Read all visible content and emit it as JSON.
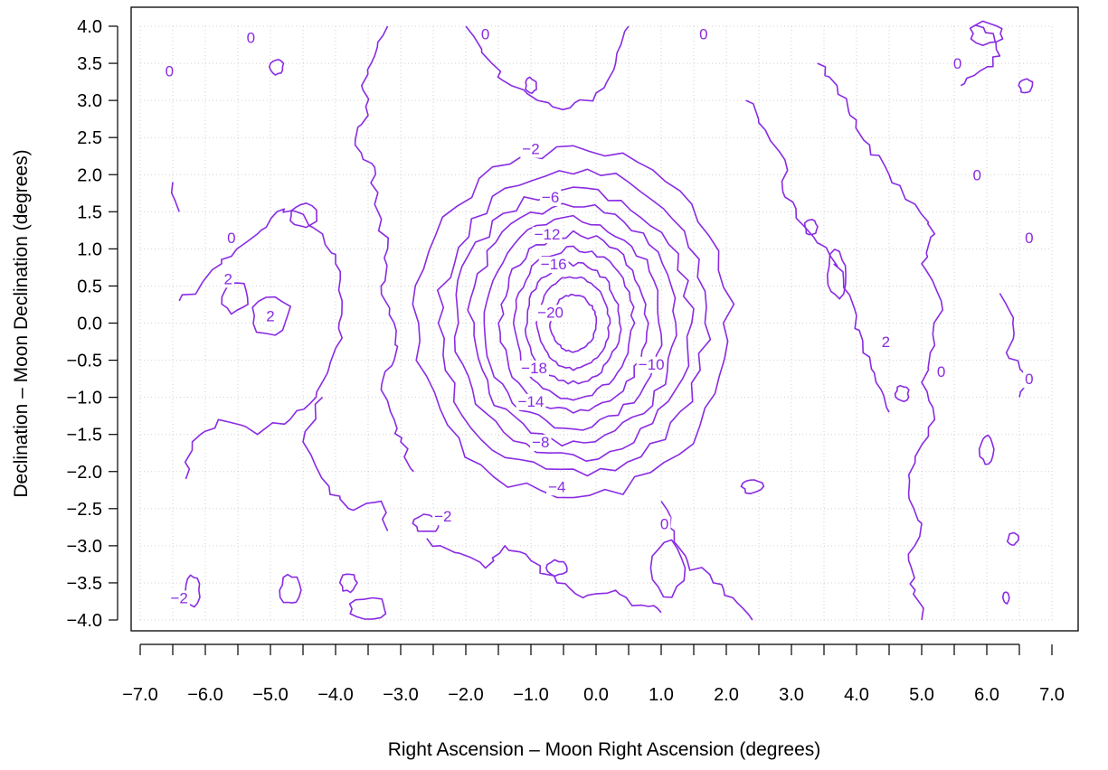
{
  "chart_data": {
    "type": "contour",
    "title": "",
    "xlabel": "Right Ascension – Moon Right Ascension (degrees)",
    "ylabel": "Declination – Moon Declination (degrees)",
    "xlim": [
      -7.0,
      7.0
    ],
    "ylim": [
      -4.0,
      4.0
    ],
    "x_ticks": [
      "−7.0",
      "−6.0",
      "−5.0",
      "−4.0",
      "−3.0",
      "−2.0",
      "−1.0",
      "0.0",
      "1.0",
      "2.0",
      "3.0",
      "4.0",
      "5.0",
      "6.0",
      "7.0"
    ],
    "y_ticks": [
      "4.0",
      "3.5",
      "3.0",
      "2.5",
      "2.0",
      "1.5",
      "1.0",
      "0.5",
      "0.0",
      "−0.5",
      "−1.0",
      "−1.5",
      "−2.0",
      "−2.5",
      "−3.0",
      "−3.5",
      "−4.0"
    ],
    "minor_x_step": 0.5,
    "grid": "dotted",
    "line_color": "#8a2be2",
    "center": [
      -0.35,
      0.0
    ],
    "rings": [
      {
        "level": -2,
        "rx": 2.4,
        "ry": 2.35
      },
      {
        "level": -4,
        "rx": 2.05,
        "ry": 2.05
      },
      {
        "level": -6,
        "rx": 1.8,
        "ry": 1.8
      },
      {
        "level": -8,
        "rx": 1.58,
        "ry": 1.6
      },
      {
        "level": -10,
        "rx": 1.35,
        "ry": 1.4
      },
      {
        "level": -12,
        "rx": 1.12,
        "ry": 1.2
      },
      {
        "level": -14,
        "rx": 0.92,
        "ry": 1.0
      },
      {
        "level": -16,
        "rx": 0.72,
        "ry": 0.8
      },
      {
        "level": -18,
        "rx": 0.55,
        "ry": 0.62
      },
      {
        "level": -20,
        "rx": 0.35,
        "ry": 0.38
      }
    ],
    "contour_labels": [
      {
        "text": "−2",
        "x": -1.0,
        "y": 2.3
      },
      {
        "text": "−6",
        "x": -0.7,
        "y": 1.65
      },
      {
        "text": "−12",
        "x": -0.75,
        "y": 1.15
      },
      {
        "text": "−16",
        "x": -0.65,
        "y": 0.75
      },
      {
        "text": "−20",
        "x": -0.7,
        "y": 0.1
      },
      {
        "text": "−18",
        "x": -0.95,
        "y": -0.65
      },
      {
        "text": "−10",
        "x": 0.85,
        "y": -0.6
      },
      {
        "text": "−14",
        "x": -1.0,
        "y": -1.1
      },
      {
        "text": "−8",
        "x": -0.85,
        "y": -1.65
      },
      {
        "text": "−4",
        "x": -0.6,
        "y": -2.25
      },
      {
        "text": "−2",
        "x": -2.35,
        "y": -2.65
      },
      {
        "text": "0",
        "x": -5.3,
        "y": 3.8
      },
      {
        "text": "0",
        "x": -6.55,
        "y": 3.35
      },
      {
        "text": "0",
        "x": -5.6,
        "y": 1.1
      },
      {
        "text": "2",
        "x": -5.65,
        "y": 0.55
      },
      {
        "text": "2",
        "x": -5.0,
        "y": 0.05
      },
      {
        "text": "0",
        "x": -1.7,
        "y": 3.85
      },
      {
        "text": "0",
        "x": 1.65,
        "y": 3.85
      },
      {
        "text": "0",
        "x": 5.55,
        "y": 3.45
      },
      {
        "text": "0",
        "x": 5.85,
        "y": 1.95
      },
      {
        "text": "0",
        "x": 6.65,
        "y": 1.1
      },
      {
        "text": "2",
        "x": 4.45,
        "y": -0.3
      },
      {
        "text": "0",
        "x": 5.3,
        "y": -0.7
      },
      {
        "text": "0",
        "x": 6.65,
        "y": -0.8
      },
      {
        "text": "0",
        "x": 1.05,
        "y": -2.75
      },
      {
        "text": "−2",
        "x": -6.4,
        "y": -3.75
      }
    ],
    "open_contours": [
      {
        "level": 0,
        "points": [
          [
            -3.2,
            4.0
          ],
          [
            -3.4,
            3.6
          ],
          [
            -3.6,
            3.2
          ],
          [
            -3.5,
            2.8
          ],
          [
            -3.7,
            2.4
          ],
          [
            -3.4,
            2.1
          ],
          [
            -3.4,
            1.6
          ],
          [
            -3.2,
            1.0
          ],
          [
            -3.3,
            0.5
          ],
          [
            -3.1,
            0.0
          ],
          [
            -3.1,
            -0.5
          ],
          [
            -3.3,
            -0.9
          ],
          [
            -3.1,
            -1.3
          ],
          [
            -3.0,
            -1.6
          ],
          [
            -2.8,
            -2.0
          ]
        ]
      },
      {
        "level": 0,
        "points": [
          [
            -4.6,
            1.5
          ],
          [
            -4.2,
            1.2
          ],
          [
            -4.0,
            0.8
          ],
          [
            -3.9,
            0.3
          ],
          [
            -3.9,
            -0.2
          ],
          [
            -4.1,
            -0.6
          ],
          [
            -4.3,
            -1.0
          ],
          [
            -4.7,
            -1.3
          ],
          [
            -5.2,
            -1.5
          ],
          [
            -5.8,
            -1.3
          ],
          [
            -6.2,
            -1.6
          ],
          [
            -6.3,
            -2.1
          ]
        ]
      },
      {
        "level": 0,
        "points": [
          [
            -6.4,
            0.3
          ],
          [
            -6.0,
            0.6
          ],
          [
            -5.6,
            0.9
          ],
          [
            -5.2,
            1.2
          ],
          [
            -4.9,
            1.5
          ],
          [
            -4.6,
            1.5
          ]
        ]
      },
      {
        "level": 0,
        "points": [
          [
            -6.5,
            1.9
          ],
          [
            -6.4,
            1.5
          ]
        ]
      },
      {
        "level": 0,
        "points": [
          [
            -4.2,
            -1.0
          ],
          [
            -4.5,
            -1.6
          ],
          [
            -4.1,
            -2.2
          ],
          [
            -3.8,
            -2.5
          ],
          [
            -3.3,
            -2.4
          ],
          [
            -3.2,
            -2.8
          ]
        ]
      },
      {
        "level": 0,
        "points": [
          [
            -2.6,
            -2.9
          ],
          [
            -2.1,
            -3.1
          ],
          [
            -1.7,
            -3.3
          ],
          [
            -1.4,
            -3.0
          ],
          [
            -1.0,
            -3.2
          ],
          [
            -0.6,
            -3.5
          ],
          [
            -0.2,
            -3.7
          ],
          [
            0.3,
            -3.6
          ],
          [
            0.7,
            -3.8
          ],
          [
            1.0,
            -3.9
          ]
        ]
      },
      {
        "level": 0,
        "points": [
          [
            1.0,
            -2.4
          ],
          [
            1.2,
            -2.8
          ],
          [
            1.4,
            -3.2
          ],
          [
            1.8,
            -3.5
          ],
          [
            2.1,
            -3.7
          ],
          [
            2.4,
            -4.0
          ]
        ]
      },
      {
        "level": 0,
        "points": [
          [
            -2.0,
            4.0
          ],
          [
            -1.6,
            3.5
          ],
          [
            -1.3,
            3.2
          ],
          [
            -0.9,
            3.0
          ],
          [
            -0.4,
            2.9
          ],
          [
            0.0,
            3.1
          ],
          [
            0.3,
            3.5
          ],
          [
            0.5,
            4.0
          ]
        ]
      },
      {
        "level": 0,
        "points": [
          [
            2.3,
            3.0
          ],
          [
            2.6,
            2.6
          ],
          [
            2.9,
            2.2
          ],
          [
            2.9,
            1.7
          ],
          [
            3.2,
            1.3
          ],
          [
            3.6,
            0.9
          ],
          [
            3.8,
            0.6
          ],
          [
            4.0,
            0.1
          ],
          [
            4.1,
            -0.4
          ],
          [
            4.3,
            -0.8
          ],
          [
            4.5,
            -1.2
          ]
        ]
      },
      {
        "level": 0,
        "points": [
          [
            3.4,
            3.5
          ],
          [
            3.7,
            3.2
          ],
          [
            3.9,
            2.8
          ],
          [
            4.2,
            2.4
          ],
          [
            4.5,
            2.0
          ],
          [
            4.9,
            1.6
          ],
          [
            5.2,
            1.2
          ],
          [
            5.0,
            0.8
          ],
          [
            5.3,
            0.3
          ],
          [
            5.2,
            -0.3
          ],
          [
            5.0,
            -0.8
          ],
          [
            5.2,
            -1.3
          ],
          [
            4.9,
            -1.8
          ],
          [
            4.8,
            -2.3
          ],
          [
            5.0,
            -2.7
          ],
          [
            4.8,
            -3.2
          ],
          [
            4.9,
            -3.6
          ],
          [
            5.0,
            -4.0
          ]
        ]
      },
      {
        "level": 0,
        "points": [
          [
            6.2,
            0.4
          ],
          [
            6.4,
            0.0
          ],
          [
            6.3,
            -0.4
          ],
          [
            6.6,
            -0.7
          ],
          [
            6.5,
            -1.0
          ]
        ]
      },
      {
        "level": 0,
        "points": [
          [
            5.6,
            3.2
          ],
          [
            5.9,
            3.4
          ],
          [
            6.2,
            3.6
          ],
          [
            6.1,
            3.9
          ],
          [
            5.8,
            4.0
          ]
        ]
      }
    ],
    "closed_blobs": [
      {
        "level": 0,
        "cx": -5.0,
        "cy": 0.1,
        "rx": 0.3,
        "ry": 0.25
      },
      {
        "level": 2,
        "cx": -5.55,
        "cy": 0.35,
        "rx": 0.2,
        "ry": 0.2
      },
      {
        "level": 0,
        "cx": -4.5,
        "cy": 1.45,
        "rx": 0.2,
        "ry": 0.15
      },
      {
        "level": 0,
        "cx": -4.9,
        "cy": 3.45,
        "rx": 0.1,
        "ry": 0.1
      },
      {
        "level": 0,
        "cx": -4.7,
        "cy": -3.6,
        "rx": 0.15,
        "ry": 0.2
      },
      {
        "level": 0,
        "cx": -3.5,
        "cy": -3.85,
        "rx": 0.3,
        "ry": 0.15
      },
      {
        "level": 0,
        "cx": -3.8,
        "cy": -3.5,
        "rx": 0.12,
        "ry": 0.12
      },
      {
        "level": 0,
        "cx": -0.6,
        "cy": -3.3,
        "rx": 0.15,
        "ry": 0.1
      },
      {
        "level": 0,
        "cx": 1.1,
        "cy": -3.3,
        "rx": 0.25,
        "ry": 0.35
      },
      {
        "level": 0,
        "cx": 2.4,
        "cy": -2.2,
        "rx": 0.15,
        "ry": 0.1
      },
      {
        "level": 0,
        "cx": 3.3,
        "cy": 1.3,
        "rx": 0.1,
        "ry": 0.1
      },
      {
        "level": 0,
        "cx": 3.7,
        "cy": 0.65,
        "rx": 0.15,
        "ry": 0.3
      },
      {
        "level": 0,
        "cx": 6.0,
        "cy": 3.9,
        "rx": 0.25,
        "ry": 0.15
      },
      {
        "level": 0,
        "cx": 6.6,
        "cy": 3.2,
        "rx": 0.1,
        "ry": 0.1
      },
      {
        "level": 0,
        "cx": 6.0,
        "cy": -1.7,
        "rx": 0.1,
        "ry": 0.2
      },
      {
        "level": 0,
        "cx": 4.7,
        "cy": -0.95,
        "rx": 0.1,
        "ry": 0.1
      },
      {
        "level": 0,
        "cx": 6.4,
        "cy": -2.9,
        "rx": 0.08,
        "ry": 0.08
      },
      {
        "level": 0,
        "cx": -1.0,
        "cy": 3.2,
        "rx": 0.08,
        "ry": 0.1
      },
      {
        "level": 0,
        "cx": -2.6,
        "cy": -2.7,
        "rx": 0.2,
        "ry": 0.12
      },
      {
        "level": 0,
        "cx": 6.3,
        "cy": -3.7,
        "rx": 0.05,
        "ry": 0.08
      },
      {
        "level": 0,
        "cx": -6.2,
        "cy": -3.6,
        "rx": 0.12,
        "ry": 0.2
      }
    ]
  }
}
